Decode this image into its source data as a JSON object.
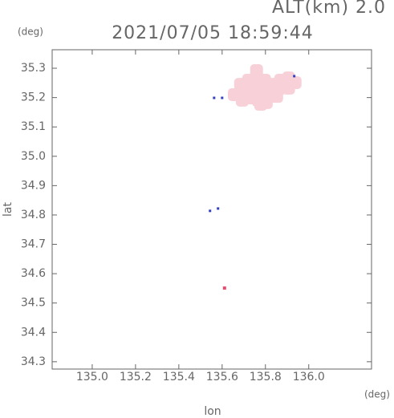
{
  "chart_data": {
    "type": "scatter",
    "title": "2021/07/05 18:59:44",
    "subtitle": "ALT(km) 2.0",
    "y_unit": "(deg)",
    "x_unit": "(deg)",
    "x_label": "lon",
    "y_label": "lat",
    "xlim": [
      134.815,
      136.29
    ],
    "ylim": [
      34.275,
      35.363
    ],
    "xticks": [
      {
        "value": 135.0,
        "label": "135.0"
      },
      135.2,
      135.4,
      135.6,
      135.8,
      {
        "value": 136.0,
        "label": "136.0"
      }
    ],
    "yticks": [
      34.3,
      34.4,
      34.5,
      34.6,
      34.7,
      34.8,
      34.9,
      {
        "value": 35.0,
        "label": "35.0"
      },
      35.1,
      35.2,
      35.3
    ],
    "series": [
      {
        "color": "#f8d0d8",
        "x": [
          135.685,
          135.722,
          135.759,
          135.796,
          135.833,
          135.87,
          135.907,
          135.937,
          135.685,
          135.722,
          135.759,
          135.796,
          135.833,
          135.87,
          135.907,
          135.73,
          135.767,
          135.804,
          135.759,
          135.656,
          135.693,
          135.852,
          135.778
        ],
        "values": [
          35.245,
          35.259,
          35.273,
          35.259,
          35.245,
          35.259,
          35.267,
          35.251,
          35.218,
          35.226,
          35.232,
          35.218,
          35.226,
          35.232,
          35.232,
          35.199,
          35.191,
          35.183,
          35.292,
          35.21,
          35.191,
          35.204,
          35.177
        ]
      },
      {
        "color": "#3040c0",
        "x": [
          135.563,
          135.6,
          135.544,
          135.581,
          135.933
        ],
        "values": [
          35.199,
          35.199,
          34.814,
          34.822,
          35.273
        ]
      },
      {
        "color": "#e05070",
        "x": [
          135.611
        ],
        "values": [
          34.551
        ]
      }
    ]
  }
}
